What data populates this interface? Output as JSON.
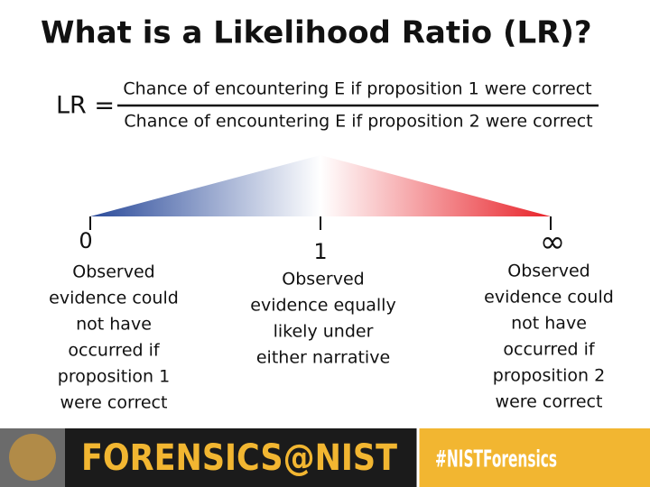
{
  "title": "What is a Likelihood Ratio (LR)?",
  "formula": {
    "lhs": "LR =",
    "numerator": "Chance of encountering E if proposition 1 were correct",
    "denominator": "Chance of encountering E if proposition 2 were correct"
  },
  "scale": [
    {
      "label": "0",
      "description": [
        "Observed",
        "evidence could",
        "not have",
        "occurred if",
        "proposition 1",
        "were correct"
      ]
    },
    {
      "label": "1",
      "description": [
        "Observed",
        "evidence equally",
        "likely under",
        "either narrative"
      ]
    },
    {
      "label": "∞",
      "description": [
        "Observed",
        "evidence could",
        "not have",
        "occurred if",
        "proposition 2",
        "were correct"
      ]
    }
  ],
  "footer": {
    "brand": "FORENSICS@NIST",
    "hashtag": "#NISTForensics"
  }
}
